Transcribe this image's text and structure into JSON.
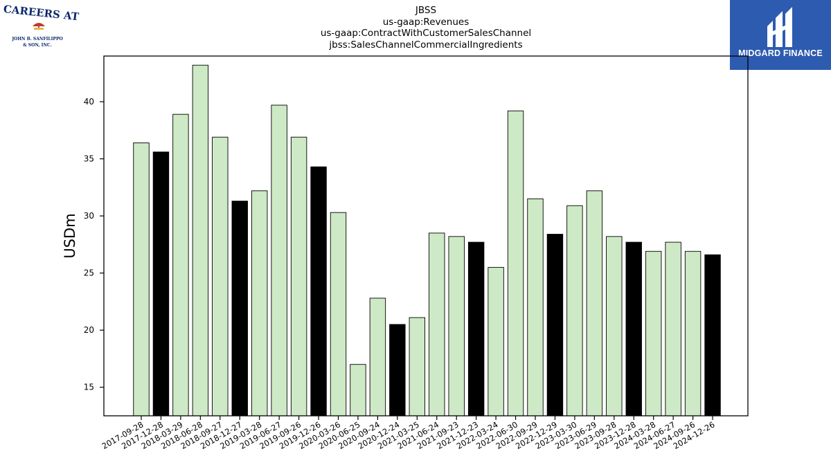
{
  "logos": {
    "left": {
      "line1": "CAREERS AT",
      "line2": "JOHN B. SANFILIPPO",
      "line3": "& SON, INC."
    },
    "right": {
      "name": "MIDGARD FINANCE",
      "bg": "#2d5bb0"
    }
  },
  "chart_data": {
    "type": "bar",
    "title_lines": [
      "JBSS",
      "us-gaap:Revenues",
      "us-gaap:ContractWithCustomerSalesChannel",
      "jbss:SalesChannelCommercialIngredients"
    ],
    "ylabel": "USDm",
    "xlabel": "",
    "ylim": [
      12.5,
      44
    ],
    "yticks": [
      15,
      20,
      25,
      30,
      35,
      40
    ],
    "categories": [
      "2017-09-28",
      "2017-12-28",
      "2018-03-29",
      "2018-06-28",
      "2018-09-27",
      "2018-12-27",
      "2019-03-28",
      "2019-06-27",
      "2019-09-26",
      "2019-12-26",
      "2020-03-26",
      "2020-06-25",
      "2020-09-24",
      "2020-12-24",
      "2021-03-25",
      "2021-06-24",
      "2021-09-23",
      "2021-12-23",
      "2022-03-24",
      "2022-06-30",
      "2022-09-29",
      "2022-12-29",
      "2023-03-30",
      "2023-06-29",
      "2023-09-28",
      "2023-12-28",
      "2024-03-28",
      "2024-06-27",
      "2024-09-26",
      "2024-12-26"
    ],
    "values": [
      36.4,
      35.6,
      38.9,
      43.2,
      36.9,
      31.3,
      32.2,
      39.7,
      36.9,
      34.3,
      30.3,
      17.0,
      22.8,
      20.5,
      21.1,
      28.5,
      28.2,
      27.7,
      25.5,
      39.2,
      31.5,
      28.4,
      30.9,
      32.2,
      28.2,
      27.7,
      26.9,
      27.7,
      26.9,
      26.6
    ],
    "highlight": [
      false,
      true,
      false,
      false,
      false,
      true,
      false,
      false,
      false,
      true,
      false,
      false,
      false,
      true,
      false,
      false,
      false,
      true,
      false,
      false,
      false,
      true,
      false,
      false,
      false,
      true,
      false,
      false,
      false,
      true
    ],
    "colors": {
      "normal": "#cde9c5",
      "highlight": "#000000",
      "edge": "#000000"
    },
    "grid": false,
    "legend": "none"
  }
}
